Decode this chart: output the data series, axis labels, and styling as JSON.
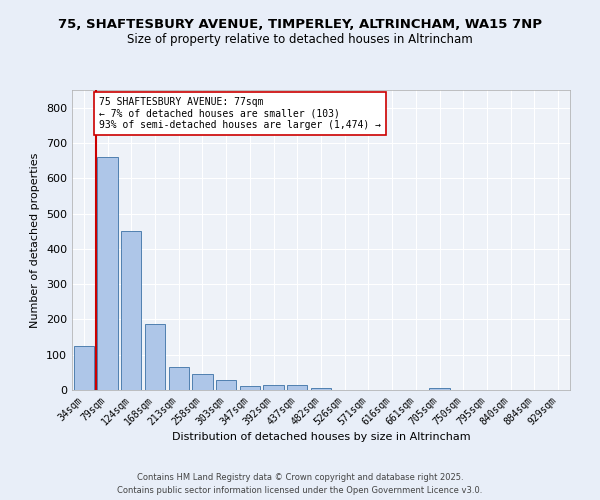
{
  "title_line1": "75, SHAFTESBURY AVENUE, TIMPERLEY, ALTRINCHAM, WA15 7NP",
  "title_line2": "Size of property relative to detached houses in Altrincham",
  "xlabel": "Distribution of detached houses by size in Altrincham",
  "ylabel": "Number of detached properties",
  "bar_labels": [
    "34sqm",
    "79sqm",
    "124sqm",
    "168sqm",
    "213sqm",
    "258sqm",
    "303sqm",
    "347sqm",
    "392sqm",
    "437sqm",
    "482sqm",
    "526sqm",
    "571sqm",
    "616sqm",
    "661sqm",
    "705sqm",
    "750sqm",
    "795sqm",
    "840sqm",
    "884sqm",
    "929sqm"
  ],
  "bar_values": [
    125,
    660,
    450,
    188,
    65,
    46,
    27,
    11,
    15,
    14,
    7,
    0,
    0,
    0,
    0,
    6,
    0,
    0,
    0,
    0,
    0
  ],
  "bar_color": "#aec6e8",
  "bar_edge_color": "#5080b0",
  "vline_color": "#cc0000",
  "annotation_text": "75 SHAFTESBURY AVENUE: 77sqm\n← 7% of detached houses are smaller (103)\n93% of semi-detached houses are larger (1,474) →",
  "annotation_box_color": "#ffffff",
  "annotation_box_edge": "#cc0000",
  "ylim": [
    0,
    850
  ],
  "yticks": [
    0,
    100,
    200,
    300,
    400,
    500,
    600,
    700,
    800
  ],
  "bg_color": "#e8eef8",
  "plot_bg": "#eef2f8",
  "grid_color": "#ffffff",
  "footnote": "Contains HM Land Registry data © Crown copyright and database right 2025.\nContains public sector information licensed under the Open Government Licence v3.0.",
  "title_fontsize": 9.5,
  "subtitle_fontsize": 8.5,
  "annotation_fontsize": 7,
  "footnote_fontsize": 6,
  "xlabel_fontsize": 8,
  "ylabel_fontsize": 8
}
